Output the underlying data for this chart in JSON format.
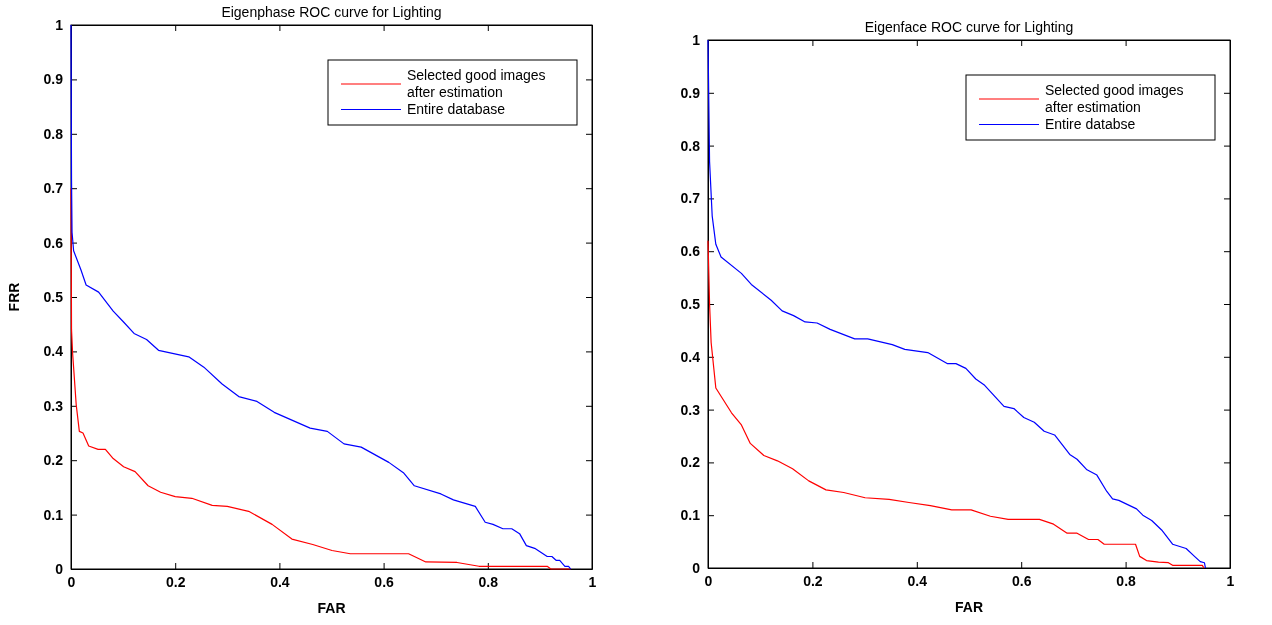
{
  "chart_data": [
    {
      "type": "line",
      "title": "Eigenphase ROC curve for Lighting",
      "xlabel": "FAR",
      "ylabel": "FRR",
      "xlim": [
        0,
        1
      ],
      "ylim": [
        0,
        1
      ],
      "xticks": [
        0,
        0.2,
        0.4,
        0.6,
        0.8,
        1
      ],
      "yticks": [
        0,
        0.1,
        0.2,
        0.3,
        0.4,
        0.5,
        0.6,
        0.7,
        0.8,
        0.9,
        1
      ],
      "legend": "top right",
      "grid": false,
      "series": [
        {
          "name": "Selected good images after estimation",
          "color": "#ff0000",
          "x": [
            0,
            0.001,
            0.003,
            0.01,
            0.016,
            0.023,
            0.034,
            0.052,
            0.066,
            0.081,
            0.101,
            0.123,
            0.148,
            0.172,
            0.2,
            0.232,
            0.271,
            0.3,
            0.341,
            0.386,
            0.424,
            0.464,
            0.501,
            0.536,
            0.648,
            0.681,
            0.741,
            0.783,
            0.914,
            0.921,
            0.959
          ],
          "values": [
            0.7,
            0.44,
            0.398,
            0.302,
            0.253,
            0.25,
            0.226,
            0.22,
            0.22,
            0.203,
            0.188,
            0.179,
            0.153,
            0.141,
            0.133,
            0.13,
            0.117,
            0.115,
            0.106,
            0.082,
            0.055,
            0.045,
            0.034,
            0.028,
            0.028,
            0.013,
            0.012,
            0.005,
            0.005,
            0,
            0
          ]
        },
        {
          "name": "Entire database",
          "color": "#0000ff",
          "x": [
            0,
            0.001,
            0.002,
            0.005,
            0.019,
            0.029,
            0.053,
            0.081,
            0.1,
            0.121,
            0.145,
            0.168,
            0.226,
            0.255,
            0.29,
            0.322,
            0.357,
            0.39,
            0.459,
            0.492,
            0.524,
            0.557,
            0.61,
            0.638,
            0.659,
            0.71,
            0.734,
            0.776,
            0.795,
            0.81,
            0.829,
            0.846,
            0.861,
            0.874,
            0.89,
            0.914,
            0.923,
            0.931,
            0.938,
            0.948,
            0.955,
            0.959
          ],
          "values": [
            1,
            0.716,
            0.619,
            0.585,
            0.55,
            0.522,
            0.509,
            0.474,
            0.455,
            0.433,
            0.422,
            0.402,
            0.39,
            0.371,
            0.34,
            0.317,
            0.308,
            0.288,
            0.259,
            0.253,
            0.23,
            0.224,
            0.196,
            0.177,
            0.153,
            0.138,
            0.127,
            0.115,
            0.086,
            0.082,
            0.074,
            0.074,
            0.065,
            0.043,
            0.038,
            0.023,
            0.023,
            0.016,
            0.016,
            0.005,
            0.005,
            0
          ]
        }
      ]
    },
    {
      "type": "line",
      "title": "Eigenface ROC curve for Lighting",
      "xlabel": "FAR",
      "xlim": [
        0,
        1
      ],
      "ylim": [
        0,
        1
      ],
      "xticks": [
        0,
        0.2,
        0.4,
        0.6,
        0.8,
        1
      ],
      "yticks": [
        0,
        0.1,
        0.2,
        0.3,
        0.4,
        0.5,
        0.6,
        0.7,
        0.8,
        0.9,
        1
      ],
      "legend": "top right",
      "grid": false,
      "series": [
        {
          "name": "Selected good images after estimation",
          "color": "#ff0000",
          "x": [
            0,
            0.003,
            0.006,
            0.015,
            0.045,
            0.064,
            0.081,
            0.107,
            0.133,
            0.162,
            0.193,
            0.226,
            0.26,
            0.301,
            0.347,
            0.385,
            0.426,
            0.467,
            0.504,
            0.541,
            0.575,
            0.635,
            0.662,
            0.688,
            0.707,
            0.729,
            0.747,
            0.759,
            0.819,
            0.827,
            0.84,
            0.863,
            0.882,
            0.89,
            0.947,
            0.95
          ],
          "values": [
            0.62,
            0.5,
            0.427,
            0.341,
            0.294,
            0.271,
            0.236,
            0.213,
            0.203,
            0.188,
            0.165,
            0.148,
            0.143,
            0.133,
            0.13,
            0.124,
            0.118,
            0.11,
            0.11,
            0.098,
            0.092,
            0.092,
            0.083,
            0.066,
            0.066,
            0.054,
            0.054,
            0.045,
            0.045,
            0.022,
            0.014,
            0.011,
            0.01,
            0.005,
            0.005,
            0
          ]
        },
        {
          "name": "Entire databse",
          "color": "#0000ff",
          "x": [
            0,
            0.003,
            0.008,
            0.015,
            0.025,
            0.064,
            0.083,
            0.121,
            0.142,
            0.164,
            0.186,
            0.209,
            0.234,
            0.281,
            0.306,
            0.353,
            0.377,
            0.421,
            0.459,
            0.475,
            0.494,
            0.513,
            0.53,
            0.567,
            0.586,
            0.605,
            0.625,
            0.644,
            0.664,
            0.693,
            0.707,
            0.726,
            0.745,
            0.764,
            0.775,
            0.787,
            0.821,
            0.833,
            0.85,
            0.869,
            0.89,
            0.916,
            0.932,
            0.943,
            0.951,
            0.953
          ],
          "values": [
            1,
            0.77,
            0.667,
            0.613,
            0.589,
            0.558,
            0.537,
            0.507,
            0.487,
            0.478,
            0.466,
            0.464,
            0.452,
            0.434,
            0.434,
            0.423,
            0.414,
            0.408,
            0.387,
            0.387,
            0.378,
            0.358,
            0.346,
            0.306,
            0.302,
            0.285,
            0.276,
            0.259,
            0.252,
            0.215,
            0.206,
            0.186,
            0.176,
            0.145,
            0.131,
            0.128,
            0.112,
            0.1,
            0.09,
            0.072,
            0.045,
            0.037,
            0.022,
            0.012,
            0.01,
            0
          ]
        }
      ]
    }
  ]
}
